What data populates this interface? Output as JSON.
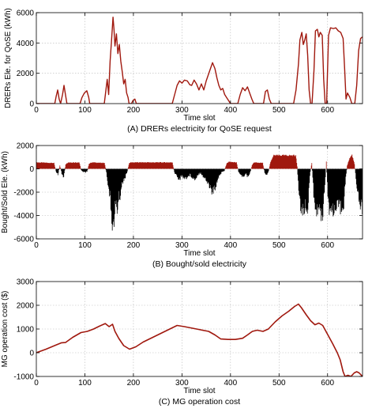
{
  "colors": {
    "series_red": "#a0180e",
    "series_black": "#000000",
    "grid": "#b8b8b8",
    "axis": "#000000"
  },
  "chart_data": [
    {
      "type": "line",
      "caption": "(A) DRERs electricity for QoSE request",
      "xlabel": "Time slot",
      "ylabel": "DRERs Ele. for QoSE (kWh)",
      "xlim": [
        0,
        672
      ],
      "ylim": [
        0,
        6000
      ],
      "xticks": [
        0,
        100,
        200,
        300,
        400,
        500,
        600
      ],
      "yticks": [
        0,
        2000,
        4000,
        6000
      ],
      "grid": true,
      "series": [
        {
          "color": "#a0180e",
          "points": [
            [
              0,
              0
            ],
            [
              38,
              0
            ],
            [
              41,
              500
            ],
            [
              44,
              900
            ],
            [
              47,
              300
            ],
            [
              50,
              0
            ],
            [
              54,
              600
            ],
            [
              57,
              1200
            ],
            [
              61,
              400
            ],
            [
              63,
              0
            ],
            [
              90,
              0
            ],
            [
              94,
              400
            ],
            [
              99,
              700
            ],
            [
              104,
              850
            ],
            [
              108,
              400
            ],
            [
              110,
              0
            ],
            [
              140,
              0
            ],
            [
              146,
              1600
            ],
            [
              149,
              600
            ],
            [
              152,
              2800
            ],
            [
              155,
              4200
            ],
            [
              158,
              5700
            ],
            [
              160,
              4900
            ],
            [
              162,
              3800
            ],
            [
              165,
              4600
            ],
            [
              168,
              3300
            ],
            [
              171,
              3900
            ],
            [
              174,
              2800
            ],
            [
              177,
              2100
            ],
            [
              180,
              1300
            ],
            [
              183,
              1600
            ],
            [
              186,
              700
            ],
            [
              189,
              400
            ],
            [
              191,
              0
            ],
            [
              196,
              0
            ],
            [
              199,
              200
            ],
            [
              203,
              300
            ],
            [
              206,
              0
            ],
            [
              280,
              0
            ],
            [
              285,
              600
            ],
            [
              290,
              1200
            ],
            [
              295,
              1500
            ],
            [
              300,
              1350
            ],
            [
              305,
              1550
            ],
            [
              311,
              1500
            ],
            [
              316,
              1250
            ],
            [
              320,
              1200
            ],
            [
              325,
              1550
            ],
            [
              330,
              1300
            ],
            [
              335,
              900
            ],
            [
              340,
              1300
            ],
            [
              345,
              900
            ],
            [
              350,
              1500
            ],
            [
              357,
              2150
            ],
            [
              363,
              2700
            ],
            [
              368,
              2300
            ],
            [
              372,
              1700
            ],
            [
              376,
              1200
            ],
            [
              380,
              900
            ],
            [
              384,
              1000
            ],
            [
              388,
              600
            ],
            [
              392,
              400
            ],
            [
              396,
              200
            ],
            [
              400,
              0
            ],
            [
              415,
              0
            ],
            [
              420,
              600
            ],
            [
              425,
              1050
            ],
            [
              430,
              850
            ],
            [
              435,
              1100
            ],
            [
              440,
              650
            ],
            [
              444,
              300
            ],
            [
              448,
              0
            ],
            [
              468,
              0
            ],
            [
              472,
              800
            ],
            [
              476,
              900
            ],
            [
              480,
              300
            ],
            [
              484,
              0
            ],
            [
              530,
              0
            ],
            [
              535,
              900
            ],
            [
              540,
              2600
            ],
            [
              543,
              4200
            ],
            [
              547,
              4700
            ],
            [
              550,
              3900
            ],
            [
              553,
              4200
            ],
            [
              556,
              4600
            ],
            [
              559,
              3200
            ],
            [
              562,
              900
            ],
            [
              565,
              0
            ],
            [
              568,
              0
            ],
            [
              572,
              2200
            ],
            [
              575,
              4800
            ],
            [
              579,
              4900
            ],
            [
              582,
              4400
            ],
            [
              585,
              4700
            ],
            [
              589,
              4500
            ],
            [
              592,
              1600
            ],
            [
              595,
              0
            ],
            [
              598,
              0
            ],
            [
              602,
              4500
            ],
            [
              606,
              5000
            ],
            [
              612,
              4950
            ],
            [
              617,
              5000
            ],
            [
              622,
              4800
            ],
            [
              627,
              4700
            ],
            [
              632,
              4300
            ],
            [
              635,
              2400
            ],
            [
              638,
              300
            ],
            [
              641,
              700
            ],
            [
              646,
              400
            ],
            [
              650,
              0
            ],
            [
              656,
              0
            ],
            [
              660,
              1200
            ],
            [
              664,
              3500
            ],
            [
              668,
              4300
            ],
            [
              672,
              4400
            ]
          ]
        }
      ]
    },
    {
      "type": "bar",
      "caption": "(B) Bought/sold electricity",
      "xlabel": "Time slot",
      "ylabel": "Bought/Sold Ele. (kWh)",
      "xlim": [
        0,
        672
      ],
      "ylim": [
        -6000,
        2000
      ],
      "xticks": [
        0,
        100,
        200,
        300,
        400,
        500,
        600
      ],
      "yticks": [
        -6000,
        -4000,
        -2000,
        0,
        2000
      ],
      "grid": true,
      "bought_color": "#a0180e",
      "sold_color": "#000000",
      "profile": [
        [
          0,
          550
        ],
        [
          36,
          500
        ],
        [
          40,
          -200
        ],
        [
          44,
          -500
        ],
        [
          48,
          300
        ],
        [
          52,
          -400
        ],
        [
          56,
          -700
        ],
        [
          60,
          400
        ],
        [
          65,
          550
        ],
        [
          88,
          550
        ],
        [
          92,
          -100
        ],
        [
          98,
          -300
        ],
        [
          104,
          -250
        ],
        [
          108,
          400
        ],
        [
          112,
          550
        ],
        [
          140,
          500
        ],
        [
          143,
          -100
        ],
        [
          146,
          -900
        ],
        [
          150,
          -2000
        ],
        [
          153,
          -3200
        ],
        [
          156,
          -4400
        ],
        [
          158,
          -5100
        ],
        [
          160,
          -4200
        ],
        [
          163,
          -3000
        ],
        [
          166,
          -3500
        ],
        [
          169,
          -2500
        ],
        [
          172,
          -2300
        ],
        [
          175,
          -1500
        ],
        [
          179,
          -900
        ],
        [
          183,
          -700
        ],
        [
          187,
          -200
        ],
        [
          191,
          500
        ],
        [
          195,
          550
        ],
        [
          280,
          550
        ],
        [
          284,
          -300
        ],
        [
          289,
          -600
        ],
        [
          294,
          -900
        ],
        [
          299,
          -600
        ],
        [
          305,
          -800
        ],
        [
          311,
          -700
        ],
        [
          316,
          -500
        ],
        [
          321,
          -700
        ],
        [
          326,
          -900
        ],
        [
          332,
          -500
        ],
        [
          338,
          -300
        ],
        [
          344,
          -700
        ],
        [
          350,
          -1000
        ],
        [
          356,
          -1400
        ],
        [
          362,
          -2000
        ],
        [
          367,
          -1700
        ],
        [
          372,
          -1000
        ],
        [
          377,
          -500
        ],
        [
          382,
          -300
        ],
        [
          387,
          -150
        ],
        [
          392,
          500
        ],
        [
          396,
          600
        ],
        [
          412,
          550
        ],
        [
          416,
          -200
        ],
        [
          420,
          -500
        ],
        [
          425,
          -700
        ],
        [
          430,
          -400
        ],
        [
          435,
          -700
        ],
        [
          440,
          -300
        ],
        [
          444,
          300
        ],
        [
          448,
          550
        ],
        [
          466,
          500
        ],
        [
          470,
          -300
        ],
        [
          474,
          -500
        ],
        [
          478,
          -200
        ],
        [
          482,
          600
        ],
        [
          485,
          800
        ],
        [
          488,
          1150
        ],
        [
          534,
          1150
        ],
        [
          537,
          200
        ],
        [
          540,
          -2000
        ],
        [
          543,
          -3300
        ],
        [
          547,
          -3600
        ],
        [
          551,
          -3200
        ],
        [
          555,
          -3400
        ],
        [
          558,
          -3600
        ],
        [
          561,
          -1800
        ],
        [
          564,
          -200
        ],
        [
          567,
          500
        ],
        [
          570,
          -1500
        ],
        [
          573,
          -3200
        ],
        [
          577,
          -3700
        ],
        [
          581,
          -3500
        ],
        [
          585,
          -3800
        ],
        [
          590,
          -3600
        ],
        [
          594,
          -1200
        ],
        [
          597,
          600
        ],
        [
          600,
          -2200
        ],
        [
          604,
          -3700
        ],
        [
          610,
          -3400
        ],
        [
          616,
          -3600
        ],
        [
          622,
          -3300
        ],
        [
          628,
          -3200
        ],
        [
          633,
          -2800
        ],
        [
          636,
          -1200
        ],
        [
          640,
          300
        ],
        [
          645,
          900
        ],
        [
          650,
          1200
        ],
        [
          655,
          400
        ],
        [
          660,
          -1500
        ],
        [
          665,
          -2900
        ],
        [
          670,
          -3200
        ],
        [
          672,
          -3300
        ]
      ]
    },
    {
      "type": "line",
      "caption": "(C) MG operation cost",
      "xlabel": "Time slot",
      "ylabel": "MG operation cost ($)",
      "xlim": [
        0,
        672
      ],
      "ylim": [
        -1000,
        3000
      ],
      "xticks": [
        0,
        100,
        200,
        300,
        400,
        500,
        600
      ],
      "yticks": [
        -1000,
        0,
        1000,
        2000,
        3000
      ],
      "grid": true,
      "series": [
        {
          "color": "#a0180e",
          "points": [
            [
              0,
              0
            ],
            [
              20,
              150
            ],
            [
              40,
              320
            ],
            [
              52,
              420
            ],
            [
              60,
              430
            ],
            [
              75,
              650
            ],
            [
              92,
              850
            ],
            [
              105,
              900
            ],
            [
              118,
              1000
            ],
            [
              130,
              1120
            ],
            [
              142,
              1230
            ],
            [
              150,
              1100
            ],
            [
              157,
              1200
            ],
            [
              162,
              900
            ],
            [
              170,
              600
            ],
            [
              180,
              300
            ],
            [
              192,
              150
            ],
            [
              205,
              250
            ],
            [
              220,
              450
            ],
            [
              240,
              650
            ],
            [
              260,
              850
            ],
            [
              280,
              1050
            ],
            [
              290,
              1150
            ],
            [
              305,
              1100
            ],
            [
              330,
              1000
            ],
            [
              355,
              900
            ],
            [
              368,
              750
            ],
            [
              380,
              580
            ],
            [
              395,
              560
            ],
            [
              410,
              560
            ],
            [
              425,
              610
            ],
            [
              435,
              750
            ],
            [
              445,
              900
            ],
            [
              455,
              950
            ],
            [
              467,
              900
            ],
            [
              478,
              1000
            ],
            [
              492,
              1300
            ],
            [
              506,
              1550
            ],
            [
              520,
              1750
            ],
            [
              532,
              1950
            ],
            [
              540,
              2050
            ],
            [
              546,
              1900
            ],
            [
              556,
              1600
            ],
            [
              565,
              1350
            ],
            [
              574,
              1180
            ],
            [
              582,
              1250
            ],
            [
              590,
              1150
            ],
            [
              598,
              850
            ],
            [
              610,
              400
            ],
            [
              620,
              0
            ],
            [
              626,
              -300
            ],
            [
              632,
              -800
            ],
            [
              636,
              -1000
            ],
            [
              642,
              -950
            ],
            [
              648,
              -1000
            ],
            [
              655,
              -850
            ],
            [
              660,
              -800
            ],
            [
              665,
              -850
            ],
            [
              672,
              -1000
            ]
          ]
        }
      ]
    }
  ]
}
